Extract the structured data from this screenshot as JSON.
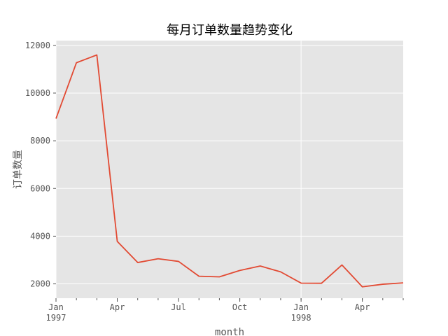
{
  "chart_data": {
    "type": "line",
    "title": "每月订单数量趋势变化",
    "xlabel": "month",
    "ylabel": "订单数量",
    "x": [
      "1997-01",
      "1997-02",
      "1997-03",
      "1997-04",
      "1997-05",
      "1997-06",
      "1997-07",
      "1997-08",
      "1997-09",
      "1997-10",
      "1997-11",
      "1997-12",
      "1998-01",
      "1998-02",
      "1998-03",
      "1998-04",
      "1998-05",
      "1998-06"
    ],
    "series": [
      {
        "values": [
          8928,
          11272,
          11598,
          3781,
          2895,
          3054,
          2942,
          2320,
          2296,
          2562,
          2750,
          2504,
          2032,
          2026,
          2793,
          1878,
          1985,
          2043
        ]
      }
    ],
    "ylim": [
      1400,
      12200
    ],
    "yticks": [
      2000,
      4000,
      6000,
      8000,
      10000,
      12000
    ],
    "xtick_labels": [
      {
        "x": "1997-01",
        "line1": "Jan",
        "line2": "1997"
      },
      {
        "x": "1997-04",
        "line1": "Apr",
        "line2": ""
      },
      {
        "x": "1997-07",
        "line1": "Jul",
        "line2": ""
      },
      {
        "x": "1997-10",
        "line1": "Oct",
        "line2": ""
      },
      {
        "x": "1998-01",
        "line1": "Jan",
        "line2": "1998"
      },
      {
        "x": "1998-04",
        "line1": "Apr",
        "line2": ""
      }
    ],
    "grid": true,
    "colors": {
      "background": "#e5e5e5",
      "grid": "#ffffff",
      "line": "#e24a33",
      "text": "#555555"
    }
  }
}
